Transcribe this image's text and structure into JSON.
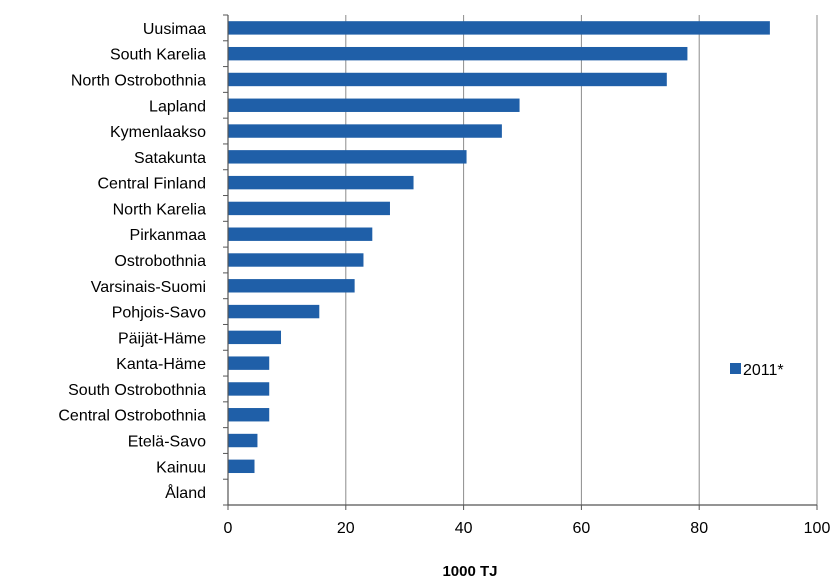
{
  "chart_data": {
    "type": "bar",
    "orientation": "horizontal",
    "categories": [
      "Uusimaa",
      "South Karelia",
      "North Ostrobothnia",
      "Lapland",
      "Kymenlaakso",
      "Satakunta",
      "Central Finland",
      "North Karelia",
      "Pirkanmaa",
      "Ostrobothnia",
      "Varsinais-Suomi",
      "Pohjois-Savo",
      "Päijät-Häme",
      "Kanta-Häme",
      "South Ostrobothnia",
      "Central Ostrobothnia",
      "Etelä-Savo",
      "Kainuu",
      "Åland"
    ],
    "series": [
      {
        "name": "2011*",
        "color": "#1f5fa8",
        "values": [
          92,
          78,
          74.5,
          49.5,
          46.5,
          40.5,
          31.5,
          27.5,
          24.5,
          23,
          21.5,
          15.5,
          9,
          7,
          7,
          7,
          5,
          4.5,
          0
        ]
      }
    ],
    "xlabel": "1000 TJ",
    "xlim": [
      0,
      100
    ],
    "xticks": [
      0,
      20,
      40,
      60,
      80,
      100
    ],
    "grid": true,
    "legend": "right"
  }
}
